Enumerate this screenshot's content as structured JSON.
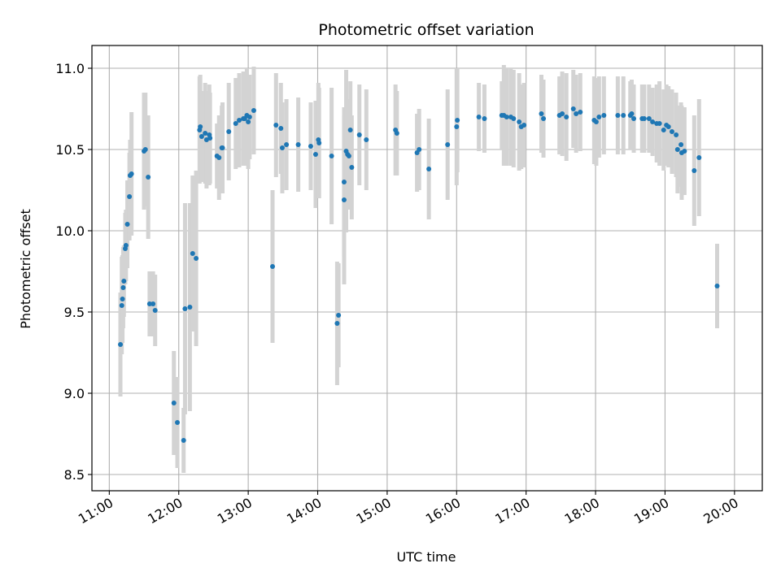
{
  "chart_data": {
    "type": "scatter",
    "title": "Photometric offset variation",
    "xlabel": "UTC time",
    "ylabel": "Photometric offset",
    "x_unit": "hours UTC",
    "xlim": [
      10.75,
      20.4
    ],
    "ylim": [
      8.4,
      11.14
    ],
    "xticks": [
      {
        "value": 11,
        "label": "11:00"
      },
      {
        "value": 12,
        "label": "12:00"
      },
      {
        "value": 13,
        "label": "13:00"
      },
      {
        "value": 14,
        "label": "14:00"
      },
      {
        "value": 15,
        "label": "15:00"
      },
      {
        "value": 16,
        "label": "16:00"
      },
      {
        "value": 17,
        "label": "17:00"
      },
      {
        "value": 18,
        "label": "18:00"
      },
      {
        "value": 19,
        "label": "19:00"
      },
      {
        "value": 20,
        "label": "20:00"
      }
    ],
    "yticks": [
      {
        "value": 8.5,
        "label": "8.5"
      },
      {
        "value": 9.0,
        "label": "9.0"
      },
      {
        "value": 9.5,
        "label": "9.5"
      },
      {
        "value": 10.0,
        "label": "10.0"
      },
      {
        "value": 10.5,
        "label": "10.5"
      },
      {
        "value": 11.0,
        "label": "11.0"
      }
    ],
    "grid": true,
    "point_color": "#1f77b4",
    "errorbar_color": "#d3d3d3",
    "points": [
      [
        11.16,
        9.3,
        0.32
      ],
      [
        11.18,
        9.54,
        0.3
      ],
      [
        11.19,
        9.58,
        0.27
      ],
      [
        11.2,
        9.65,
        0.25
      ],
      [
        11.21,
        9.69,
        0.22
      ],
      [
        11.23,
        9.89,
        0.22
      ],
      [
        11.24,
        9.91,
        0.22
      ],
      [
        11.26,
        10.04,
        0.27
      ],
      [
        11.29,
        10.21,
        0.27
      ],
      [
        11.3,
        10.34,
        0.22
      ],
      [
        11.32,
        10.35,
        0.38
      ],
      [
        11.5,
        10.49,
        0.36
      ],
      [
        11.52,
        10.5,
        0.35
      ],
      [
        11.56,
        10.33,
        0.38
      ],
      [
        11.58,
        9.55,
        0.2
      ],
      [
        11.63,
        9.55,
        0.2
      ],
      [
        11.66,
        9.51,
        0.22
      ],
      [
        11.93,
        8.94,
        0.32
      ],
      [
        11.98,
        8.82,
        0.28
      ],
      [
        12.07,
        8.71,
        0.2
      ],
      [
        12.09,
        9.52,
        0.65
      ],
      [
        12.16,
        9.53,
        0.64
      ],
      [
        12.2,
        9.86,
        0.48
      ],
      [
        12.25,
        9.83,
        0.54
      ],
      [
        12.3,
        10.62,
        0.33
      ],
      [
        12.31,
        10.64,
        0.32
      ],
      [
        12.33,
        10.58,
        0.28
      ],
      [
        12.38,
        10.6,
        0.31
      ],
      [
        12.4,
        10.56,
        0.3
      ],
      [
        12.44,
        10.59,
        0.31
      ],
      [
        12.45,
        10.57,
        0.28
      ],
      [
        12.55,
        10.46,
        0.2
      ],
      [
        12.58,
        10.45,
        0.26
      ],
      [
        12.62,
        10.51,
        0.26
      ],
      [
        12.63,
        10.51,
        0.28
      ],
      [
        12.72,
        10.61,
        0.3
      ],
      [
        12.82,
        10.66,
        0.28
      ],
      [
        12.87,
        10.68,
        0.29
      ],
      [
        12.93,
        10.69,
        0.29
      ],
      [
        12.95,
        10.69,
        0.29
      ],
      [
        12.98,
        10.71,
        0.29
      ],
      [
        13.0,
        10.67,
        0.29
      ],
      [
        13.02,
        10.7,
        0.26
      ],
      [
        13.08,
        10.74,
        0.27
      ],
      [
        13.35,
        9.78,
        0.47
      ],
      [
        13.4,
        10.65,
        0.32
      ],
      [
        13.47,
        10.63,
        0.28
      ],
      [
        13.49,
        10.51,
        0.28
      ],
      [
        13.55,
        10.53,
        0.28
      ],
      [
        13.72,
        10.53,
        0.29
      ],
      [
        13.9,
        10.52,
        0.27
      ],
      [
        13.97,
        10.47,
        0.33
      ],
      [
        14.01,
        10.56,
        0.35
      ],
      [
        14.02,
        10.54,
        0.34
      ],
      [
        14.2,
        10.46,
        0.42
      ],
      [
        14.28,
        9.43,
        0.38
      ],
      [
        14.3,
        9.48,
        0.32
      ],
      [
        14.38,
        10.19,
        0.52
      ],
      [
        14.38,
        10.3,
        0.46
      ],
      [
        14.41,
        10.49,
        0.5
      ],
      [
        14.43,
        10.47,
        0.34
      ],
      [
        14.45,
        10.46,
        0.33
      ],
      [
        14.47,
        10.62,
        0.3
      ],
      [
        14.49,
        10.39,
        0.32
      ],
      [
        14.6,
        10.59,
        0.31
      ],
      [
        14.7,
        10.56,
        0.31
      ],
      [
        15.12,
        10.62,
        0.28
      ],
      [
        15.14,
        10.6,
        0.26
      ],
      [
        15.43,
        10.48,
        0.24
      ],
      [
        15.46,
        10.5,
        0.25
      ],
      [
        15.6,
        10.38,
        0.31
      ],
      [
        15.87,
        10.53,
        0.34
      ],
      [
        16.0,
        10.64,
        0.36
      ],
      [
        16.01,
        10.68,
        0.32
      ],
      [
        16.32,
        10.7,
        0.21
      ],
      [
        16.4,
        10.69,
        0.21
      ],
      [
        16.65,
        10.71,
        0.21
      ],
      [
        16.68,
        10.71,
        0.31
      ],
      [
        16.72,
        10.7,
        0.3
      ],
      [
        16.78,
        10.7,
        0.3
      ],
      [
        16.82,
        10.69,
        0.3
      ],
      [
        16.9,
        10.67,
        0.3
      ],
      [
        16.93,
        10.64,
        0.26
      ],
      [
        16.97,
        10.65,
        0.26
      ],
      [
        17.22,
        10.72,
        0.24
      ],
      [
        17.25,
        10.69,
        0.24
      ],
      [
        17.48,
        10.71,
        0.24
      ],
      [
        17.52,
        10.72,
        0.26
      ],
      [
        17.58,
        10.7,
        0.27
      ],
      [
        17.68,
        10.75,
        0.24
      ],
      [
        17.72,
        10.72,
        0.24
      ],
      [
        17.78,
        10.73,
        0.24
      ],
      [
        17.98,
        10.68,
        0.27
      ],
      [
        18.01,
        10.67,
        0.27
      ],
      [
        18.05,
        10.7,
        0.25
      ],
      [
        18.12,
        10.71,
        0.24
      ],
      [
        18.32,
        10.71,
        0.24
      ],
      [
        18.4,
        10.71,
        0.24
      ],
      [
        18.5,
        10.71,
        0.21
      ],
      [
        18.52,
        10.72,
        0.21
      ],
      [
        18.55,
        10.69,
        0.21
      ],
      [
        18.67,
        10.69,
        0.21
      ],
      [
        18.7,
        10.69,
        0.21
      ],
      [
        18.77,
        10.69,
        0.21
      ],
      [
        18.82,
        10.67,
        0.21
      ],
      [
        18.88,
        10.66,
        0.24
      ],
      [
        18.92,
        10.66,
        0.26
      ],
      [
        18.98,
        10.62,
        0.25
      ],
      [
        19.02,
        10.65,
        0.25
      ],
      [
        19.05,
        10.64,
        0.25
      ],
      [
        19.1,
        10.61,
        0.26
      ],
      [
        19.16,
        10.59,
        0.26
      ],
      [
        19.18,
        10.5,
        0.27
      ],
      [
        19.23,
        10.53,
        0.26
      ],
      [
        19.24,
        10.48,
        0.29
      ],
      [
        19.28,
        10.49,
        0.27
      ],
      [
        19.42,
        10.37,
        0.34
      ],
      [
        19.49,
        10.45,
        0.36
      ],
      [
        19.75,
        9.66,
        0.26
      ]
    ]
  }
}
